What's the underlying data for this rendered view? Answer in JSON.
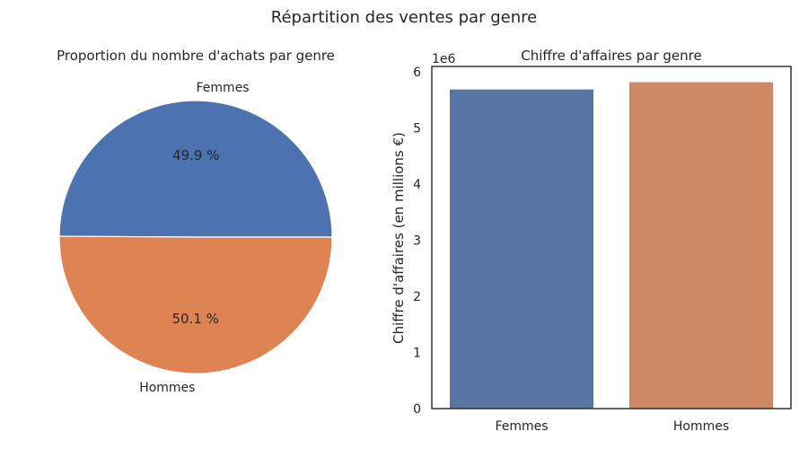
{
  "figure": {
    "suptitle": "Répartition des ventes par genre"
  },
  "chart_data": [
    {
      "type": "pie",
      "title": "Proportion du nombre d'achats par genre",
      "categories": [
        "Femmes",
        "Hommes"
      ],
      "values": [
        49.9,
        50.1
      ],
      "value_labels": [
        "49.9 %",
        "50.1 %"
      ],
      "colors": [
        "#4C72B0",
        "#DD8452"
      ]
    },
    {
      "type": "bar",
      "title": "Chiffre d'affaires par genre",
      "categories": [
        "Femmes",
        "Hommes"
      ],
      "values": [
        5690000,
        5820000
      ],
      "colors": [
        "#5975A4",
        "#CC8963"
      ],
      "xlabel": "",
      "ylabel": "Chiffre d'affaires (en millions €)",
      "ylim": [
        0,
        6100000
      ],
      "yticks": [
        0,
        1,
        2,
        3,
        4,
        5,
        6
      ],
      "offset_label": "1e6",
      "grid": false
    }
  ]
}
